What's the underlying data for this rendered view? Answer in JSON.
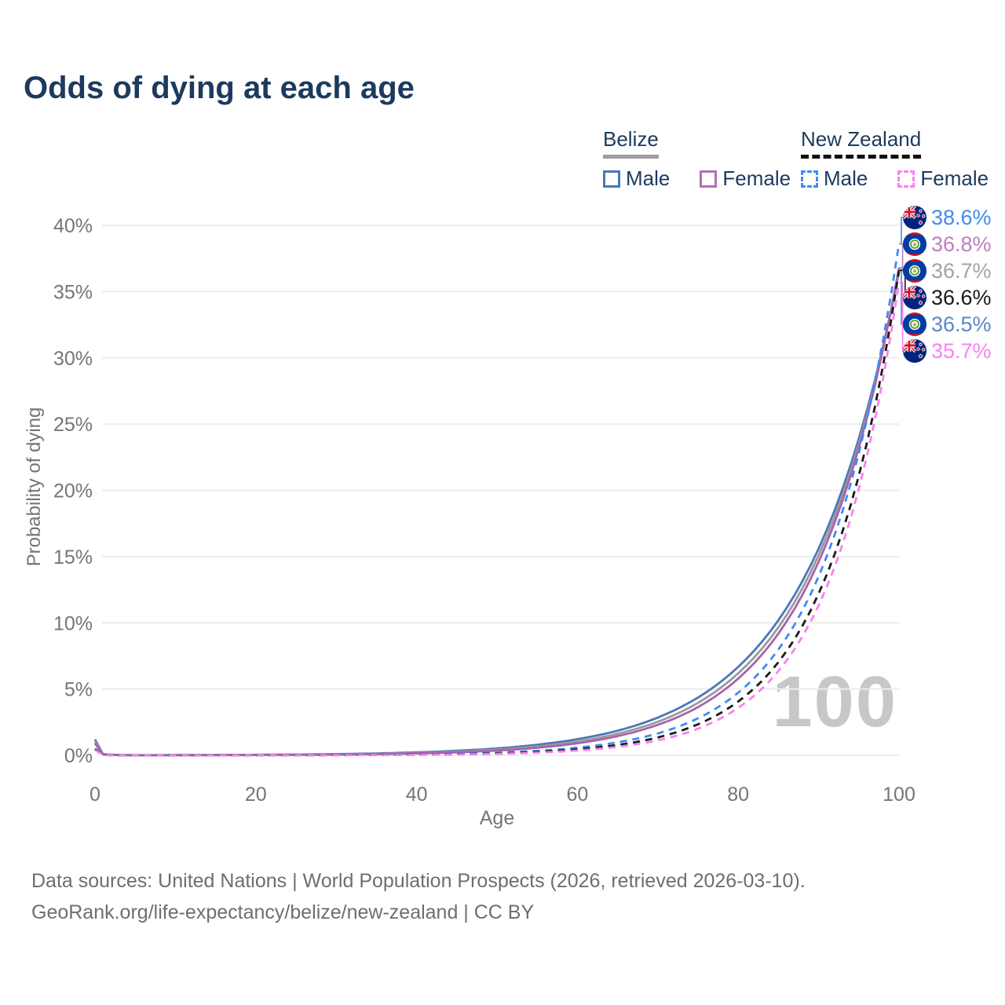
{
  "title": "Odds of dying at each age",
  "legend": {
    "belize": {
      "country": "Belize",
      "male": "Male",
      "female": "Female"
    },
    "new_zealand": {
      "country": "New Zealand",
      "male": "Male",
      "female": "Female"
    }
  },
  "watermark": "100",
  "footer": {
    "line1": "Data sources: United Nations | World Population Prospects (2026, retrieved 2026-03-10).",
    "line2": "GeoRank.org/life-expectancy/belize/new-zealand | CC BY"
  },
  "chart_data": {
    "type": "line",
    "xlabel": "Age",
    "ylabel": "Probability of dying",
    "xlim": [
      0,
      100
    ],
    "ylim": [
      0,
      40
    ],
    "xticks": [
      0,
      20,
      40,
      60,
      80,
      100
    ],
    "yticks": [
      0,
      5,
      10,
      15,
      20,
      25,
      30,
      35,
      40
    ],
    "ytick_suffix": "%",
    "grid": true,
    "legend_position": "top-right",
    "x": [
      0,
      1,
      5,
      10,
      15,
      20,
      25,
      30,
      35,
      40,
      45,
      50,
      55,
      60,
      65,
      70,
      75,
      80,
      85,
      90,
      95,
      100
    ],
    "series": [
      {
        "id": "belize-male",
        "name": "Belize Male",
        "country": "Belize",
        "sex": "Male",
        "style": "solid",
        "color": "#4a77b6",
        "values": [
          1.2,
          0.09,
          0.011,
          0.017,
          0.027,
          0.041,
          0.062,
          0.095,
          0.145,
          0.223,
          0.341,
          0.52,
          0.8,
          1.22,
          1.86,
          2.85,
          4.36,
          6.67,
          10.2,
          15.6,
          23.9,
          36.5
        ]
      },
      {
        "id": "belize-total",
        "name": "Belize Both sexes",
        "country": "Belize",
        "sex": "Both",
        "style": "solid",
        "color": "#9a9a9a",
        "values": [
          1.05,
          0.08,
          0.008,
          0.012,
          0.019,
          0.03,
          0.046,
          0.072,
          0.113,
          0.176,
          0.274,
          0.43,
          0.67,
          1.04,
          1.63,
          2.53,
          3.96,
          6.19,
          9.66,
          15.1,
          23.5,
          36.7
        ]
      },
      {
        "id": "belize-female",
        "name": "Belize Female",
        "country": "Belize",
        "sex": "Female",
        "style": "solid",
        "color": "#a862ae",
        "values": [
          0.9,
          0.07,
          0.006,
          0.009,
          0.014,
          0.022,
          0.036,
          0.057,
          0.09,
          0.143,
          0.227,
          0.36,
          0.57,
          0.91,
          1.45,
          2.3,
          3.64,
          5.79,
          9.19,
          14.6,
          23.2,
          36.8
        ]
      },
      {
        "id": "nz-male",
        "name": "New Zealand Male",
        "country": "New Zealand",
        "sex": "Male",
        "style": "dashed",
        "color": "#3f8bf2",
        "values": [
          0.5,
          0.04,
          0.002,
          0.003,
          0.005,
          0.009,
          0.015,
          0.025,
          0.042,
          0.071,
          0.12,
          0.203,
          0.34,
          0.58,
          0.98,
          1.65,
          2.79,
          4.73,
          7.99,
          13.5,
          22.8,
          38.6
        ]
      },
      {
        "id": "nz-total",
        "name": "New Zealand Both sexes",
        "country": "New Zealand",
        "sex": "Both",
        "style": "dashed",
        "color": "#1a1a1a",
        "values": [
          0.45,
          0.035,
          0.001,
          0.002,
          0.003,
          0.006,
          0.01,
          0.017,
          0.029,
          0.05,
          0.086,
          0.15,
          0.259,
          0.45,
          0.78,
          1.35,
          2.34,
          4.06,
          7.03,
          12.2,
          21.1,
          36.6
        ]
      },
      {
        "id": "nz-female",
        "name": "New Zealand Female",
        "country": "New Zealand",
        "sex": "Female",
        "style": "dashed",
        "color": "#fb7ff2",
        "values": [
          0.4,
          0.03,
          0.001,
          0.001,
          0.002,
          0.004,
          0.006,
          0.011,
          0.02,
          0.036,
          0.064,
          0.113,
          0.202,
          0.36,
          0.64,
          1.13,
          2.01,
          3.58,
          6.36,
          11.3,
          20.1,
          35.7
        ]
      }
    ],
    "end_labels": [
      {
        "text": "38.6%",
        "value": 38.6,
        "color": "#3f8bf2",
        "flag": "nz",
        "series": "nz-male"
      },
      {
        "text": "36.8%",
        "value": 36.8,
        "color": "#bd7ebd",
        "flag": "belize",
        "series": "belize-female"
      },
      {
        "text": "36.7%",
        "value": 36.7,
        "color": "#a3a3a3",
        "flag": "belize",
        "series": "belize-total"
      },
      {
        "text": "36.6%",
        "value": 36.6,
        "color": "#1a1a1a",
        "flag": "nz",
        "series": "nz-total"
      },
      {
        "text": "36.5%",
        "value": 36.5,
        "color": "#5b87c5",
        "flag": "belize",
        "series": "belize-male"
      },
      {
        "text": "35.7%",
        "value": 35.7,
        "color": "#fb7ff2",
        "flag": "nz",
        "series": "nz-female"
      }
    ]
  }
}
